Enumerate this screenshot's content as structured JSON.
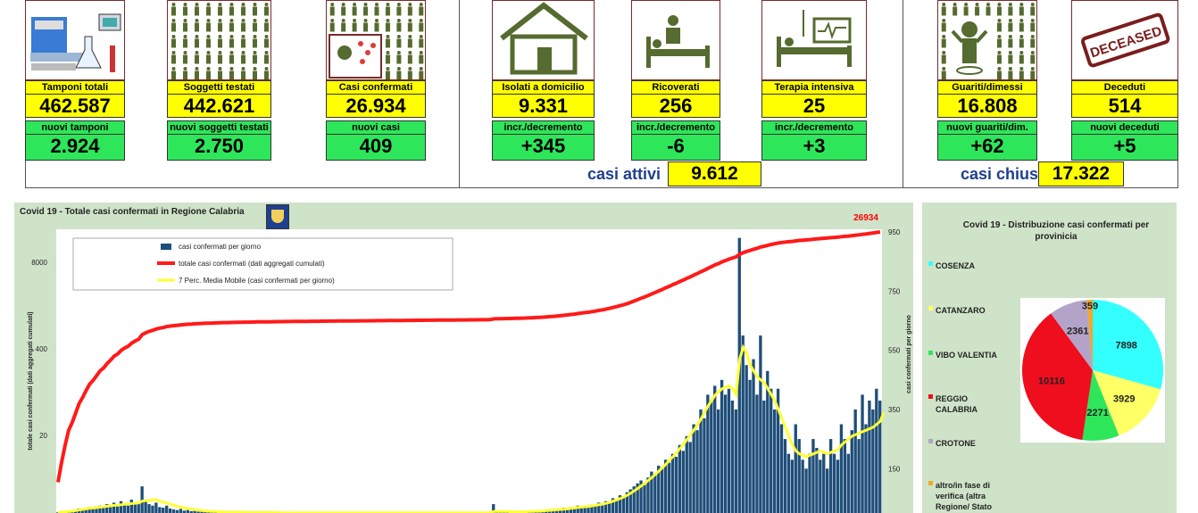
{
  "stats": [
    {
      "label": "Tamponi totali",
      "value": "462.587",
      "sub_label": "nuovi tamponi",
      "sub_value": "2.924"
    },
    {
      "label": "Soggetti testati",
      "value": "442.621",
      "sub_label": "nuovi soggetti testati",
      "sub_value": "2.750"
    },
    {
      "label": "Casi confermati",
      "value": "26.934",
      "sub_label": "nuovi casi",
      "sub_value": "409"
    },
    {
      "label": "Isolati a domicilio",
      "value": "9.331",
      "sub_label": "incr./decremento",
      "sub_value": "+345"
    },
    {
      "label": "Ricoverati",
      "value": "256",
      "sub_label": "incr./decremento",
      "sub_value": "-6"
    },
    {
      "label": "Terapia intensiva",
      "value": "25",
      "sub_label": "incr./decremento",
      "sub_value": "+3"
    },
    {
      "label": "Guariti/dimessi",
      "value": "16.808",
      "sub_label": "nuovi guariti/dim.",
      "sub_value": "+62"
    },
    {
      "label": "Deceduti",
      "value": "514",
      "sub_label": "nuovi deceduti",
      "sub_value": "+5"
    }
  ],
  "icons": [
    "lab-equipment-icon",
    "people-grid-icon",
    "virus-people-icon",
    "house-icon",
    "hospital-bed-icon",
    "intensive-care-icon",
    "recovered-person-icon",
    "deceased-stamp-icon"
  ],
  "stamp_text": "DECEASED",
  "summary": {
    "active_label": "casi attivi",
    "active_value": "9.612",
    "closed_label": "casi chiusi",
    "closed_value": "17.322"
  },
  "colors": {
    "yellow": "#ffff00",
    "green": "#2ee65a",
    "panel": "#cfe3c8",
    "bars": "#1f4e79",
    "cumulative": "#ff1a1a",
    "moving_avg": "#ffff33",
    "accent_label": "#ff0000"
  },
  "chart_data": [
    {
      "type": "bar",
      "title": "Covid 19 - Totale casi confermati in Regione Calabria",
      "ylabel_left": "totale casi confermati (dati aggregati cumulati)",
      "ylabel_right": "casi confermati per giorno",
      "left_ticks": [
        "8000",
        "400",
        "20"
      ],
      "right_ticks": [
        "950",
        "750",
        "550",
        "350",
        "150"
      ],
      "ylim_right": [
        0,
        950
      ],
      "end_label": "26934",
      "legend": [
        "casi confermati per giorno",
        "totale casi confermati (dati aggregati cumulati)",
        "7 Perc. Media Mobile (casi confermati per giorno)"
      ],
      "daily": [
        2,
        3,
        5,
        8,
        6,
        10,
        15,
        12,
        18,
        20,
        14,
        22,
        25,
        18,
        30,
        28,
        35,
        22,
        40,
        30,
        25,
        45,
        35,
        30,
        90,
        40,
        30,
        25,
        35,
        20,
        18,
        25,
        15,
        12,
        10,
        14,
        8,
        10,
        6,
        8,
        5,
        6,
        4,
        5,
        3,
        4,
        3,
        5,
        2,
        3,
        2,
        4,
        3,
        2,
        1,
        3,
        2,
        2,
        1,
        2,
        1,
        2,
        1,
        1,
        2,
        1,
        1,
        2,
        1,
        1,
        1,
        2,
        1,
        1,
        1,
        1,
        2,
        1,
        1,
        1,
        1,
        1,
        2,
        1,
        1,
        1,
        1,
        1,
        1,
        2,
        1,
        1,
        1,
        1,
        1,
        1,
        1,
        2,
        1,
        1,
        1,
        1,
        1,
        1,
        1,
        1,
        1,
        1,
        1,
        1,
        1,
        1,
        1,
        1,
        2,
        1,
        1,
        1,
        1,
        1,
        1,
        1,
        1,
        1,
        30,
        5,
        2,
        3,
        2,
        3,
        4,
        3,
        5,
        4,
        6,
        5,
        8,
        6,
        10,
        8,
        12,
        10,
        15,
        12,
        18,
        14,
        20,
        16,
        25,
        20,
        22,
        18,
        28,
        25,
        35,
        30,
        40,
        35,
        50,
        45,
        60,
        55,
        70,
        80,
        90,
        100,
        110,
        95,
        120,
        140,
        130,
        160,
        150,
        180,
        170,
        200,
        190,
        230,
        210,
        260,
        240,
        300,
        280,
        350,
        320,
        400,
        380,
        430,
        350,
        450,
        400,
        420,
        380,
        350,
        930,
        600,
        500,
        450,
        520,
        400,
        600,
        380,
        480,
        420,
        350,
        420,
        300,
        250,
        200,
        180,
        300,
        250,
        180,
        150,
        200,
        250,
        220,
        180,
        200,
        150,
        250,
        200,
        180,
        300,
        250,
        200,
        280,
        350,
        250,
        400,
        300,
        380,
        350,
        420,
        380
      ],
      "moving_avg": [
        2,
        3,
        4,
        5,
        6,
        8,
        10,
        12,
        14,
        16,
        17,
        18,
        20,
        21,
        23,
        24,
        26,
        27,
        28,
        30,
        31,
        32,
        33,
        34,
        40,
        42,
        43,
        44,
        45,
        40,
        36,
        34,
        30,
        26,
        22,
        20,
        17,
        15,
        13,
        11,
        9,
        8,
        7,
        6,
        5,
        5,
        4,
        4,
        3,
        3,
        3,
        3,
        3,
        2,
        2,
        2,
        2,
        2,
        2,
        2,
        2,
        2,
        2,
        1,
        1,
        1,
        1,
        1,
        1,
        1,
        1,
        1,
        1,
        1,
        1,
        1,
        1,
        1,
        1,
        1,
        1,
        1,
        1,
        1,
        1,
        1,
        1,
        1,
        1,
        1,
        1,
        1,
        1,
        1,
        1,
        1,
        1,
        1,
        1,
        1,
        1,
        1,
        1,
        1,
        1,
        1,
        1,
        1,
        1,
        1,
        1,
        1,
        1,
        1,
        1,
        1,
        1,
        1,
        1,
        1,
        1,
        1,
        1,
        1,
        5,
        5,
        5,
        5,
        5,
        4,
        4,
        4,
        4,
        4,
        5,
        5,
        6,
        6,
        7,
        8,
        9,
        10,
        11,
        12,
        13,
        14,
        16,
        17,
        19,
        20,
        21,
        22,
        24,
        26,
        28,
        30,
        33,
        36,
        40,
        44,
        49,
        54,
        60,
        67,
        75,
        83,
        92,
        100,
        110,
        120,
        130,
        142,
        153,
        165,
        178,
        190,
        203,
        218,
        232,
        248,
        264,
        281,
        298,
        318,
        340,
        362,
        380,
        398,
        410,
        420,
        425,
        430,
        420,
        400,
        520,
        560,
        540,
        500,
        480,
        460,
        450,
        440,
        420,
        400,
        380,
        350,
        320,
        290,
        260,
        230,
        210,
        200,
        195,
        190,
        195,
        200,
        205,
        210,
        205,
        200,
        205,
        210,
        215,
        230,
        240,
        250,
        260,
        265,
        270,
        275,
        280,
        285,
        290,
        300,
        310,
        340
      ]
    },
    {
      "type": "pie",
      "title": "Covid 19 - Distribuzione casi confermati per provinicia",
      "categories": [
        "COSENZA",
        "CATANZARO",
        "VIBO VALENTIA",
        "REGGIO CALABRIA",
        "CROTONE",
        "altro/in fase di verifica (altra Regione/ Stato"
      ],
      "values": [
        7898,
        3929,
        2271,
        10116,
        2361,
        359
      ],
      "colors": [
        "#33ffff",
        "#ffff66",
        "#2ee65a",
        "#ee0e1e",
        "#b3a3c8",
        "#f5a623"
      ]
    }
  ]
}
